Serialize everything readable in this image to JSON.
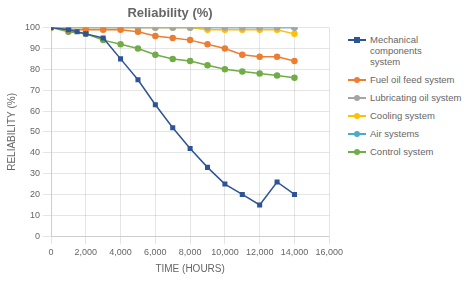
{
  "chart_data": {
    "type": "line",
    "title": "Reliability (%)",
    "x_label": "TIME (HOURS)",
    "y_label": "RELIABILITY (%)",
    "xlim": [
      0,
      16000
    ],
    "ylim": [
      0,
      100
    ],
    "xticks": [
      0,
      {
        "value": 2000,
        "label": "2,000"
      },
      {
        "value": 4000,
        "label": "4,000"
      },
      {
        "value": 6000,
        "label": "6,000"
      },
      {
        "value": 8000,
        "label": "8,000"
      },
      {
        "value": 10000,
        "label": "10,000"
      },
      {
        "value": 12000,
        "label": "12,000"
      },
      {
        "value": 14000,
        "label": "14,000"
      },
      {
        "value": 16000,
        "label": "16,000"
      }
    ],
    "yticks": [
      0,
      10,
      20,
      30,
      40,
      50,
      60,
      70,
      80,
      90,
      100
    ],
    "grid": true,
    "legend": "right",
    "series": [
      {
        "name": "Mechanical components\nsystem",
        "color": "#2F5496",
        "marker": "square",
        "x": [
          0,
          1000,
          1500,
          2000,
          3000,
          4000,
          5000,
          6000,
          7000,
          8000,
          9000,
          10000,
          11000,
          12000,
          13000,
          14000
        ],
        "values": [
          100,
          99,
          98,
          97,
          95,
          85,
          75,
          63,
          52,
          42,
          33,
          25,
          20,
          15,
          26,
          20
        ]
      },
      {
        "name": "Fuel oil feed system",
        "color": "#ED7D31",
        "marker": "circle",
        "x": [
          0,
          1000,
          2000,
          3000,
          4000,
          5000,
          6000,
          7000,
          8000,
          9000,
          10000,
          11000,
          12000,
          13000,
          14000
        ],
        "values": [
          100,
          99,
          99,
          99,
          99,
          98,
          96,
          95,
          94,
          92,
          90,
          87,
          86,
          86,
          84
        ]
      },
      {
        "name": "Lubricating oil system",
        "color": "#A5A5A5",
        "marker": "circle",
        "x": [
          0,
          1000,
          2000,
          3000,
          4000,
          5000,
          6000,
          7000,
          8000,
          9000,
          10000,
          11000,
          12000,
          13000,
          14000
        ],
        "values": [
          100,
          100,
          100,
          100,
          100,
          100,
          100,
          100,
          100,
          100,
          100,
          100,
          100,
          100,
          100
        ]
      },
      {
        "name": "Cooling system",
        "color": "#FFC000",
        "marker": "circle",
        "x": [
          0,
          1000,
          2000,
          3000,
          4000,
          5000,
          6000,
          7000,
          8000,
          9000,
          10000,
          11000,
          12000,
          13000,
          14000
        ],
        "values": [
          100,
          100,
          100,
          100,
          100,
          100,
          100,
          100,
          100,
          99,
          99,
          99,
          99,
          99,
          97
        ]
      },
      {
        "name": "Air systems",
        "color": "#4BACC6",
        "marker": "circle",
        "x": [
          0,
          1000,
          2000,
          3000,
          4000,
          5000,
          6000,
          7000,
          8000,
          9000,
          10000,
          11000,
          12000,
          13000,
          14000
        ],
        "values": [
          100,
          100,
          100,
          100,
          100,
          100,
          100,
          100,
          100,
          100,
          100,
          100,
          100,
          100,
          100
        ]
      },
      {
        "name": "Control system",
        "color": "#70AD47",
        "marker": "circle",
        "x": [
          0,
          1000,
          2000,
          3000,
          4000,
          5000,
          6000,
          7000,
          8000,
          9000,
          10000,
          11000,
          12000,
          13000,
          14000
        ],
        "values": [
          100,
          98,
          97,
          94,
          92,
          90,
          87,
          85,
          84,
          82,
          80,
          79,
          78,
          77,
          76
        ]
      }
    ]
  }
}
